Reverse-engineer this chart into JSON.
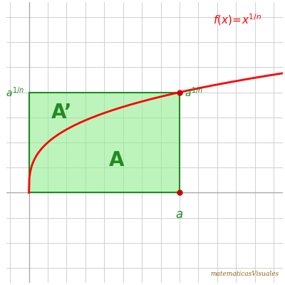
{
  "a": 8.0,
  "n": 3.0,
  "x_range": [
    -1.2,
    13.5
  ],
  "y_range": [
    -1.8,
    3.8
  ],
  "curve_color": "#ff0000",
  "fill_color": "#90EE90",
  "fill_alpha": 0.6,
  "rect_edge_color": "#228B22",
  "label_color": "#228B22",
  "dot_color": "#cc0000",
  "background_color": "#ffffff",
  "grid_color": "#d0d0d0",
  "grid_spacing_x": 1.0,
  "grid_spacing_y": 0.5,
  "label_A": "A",
  "label_Aprime": "A’",
  "watermark": "matematicasVisuales",
  "figsize": [
    4.0,
    4.0
  ],
  "dpi": 100
}
